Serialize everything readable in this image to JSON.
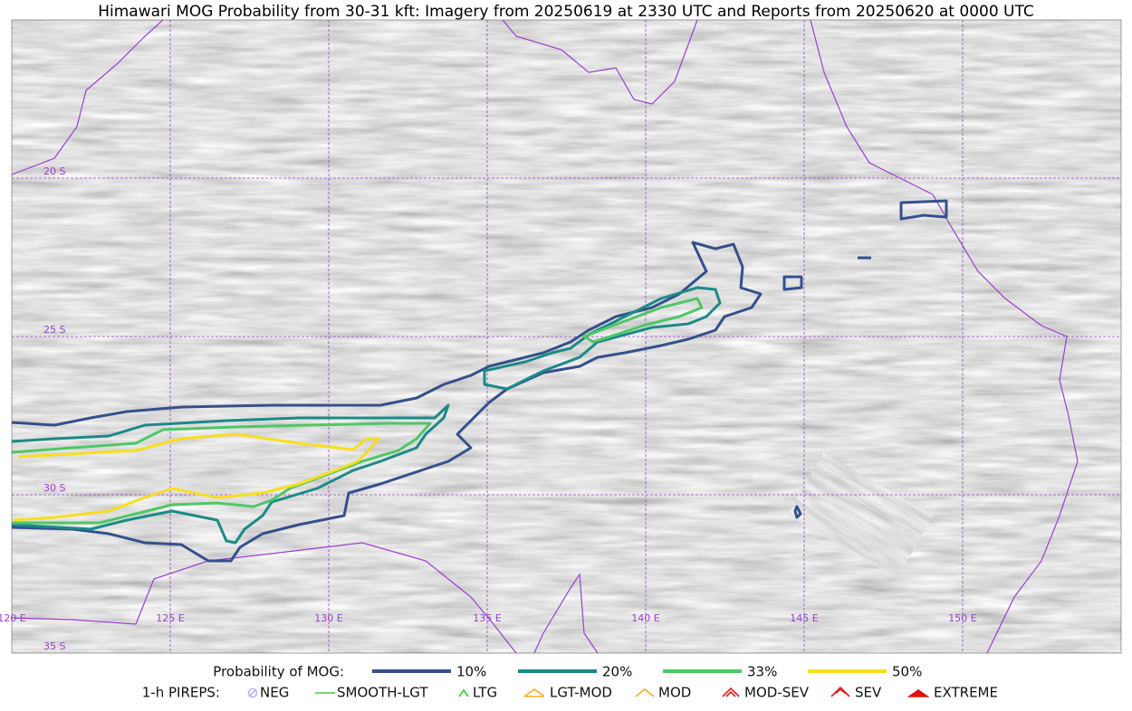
{
  "title": "Himawari MOG Probability from 30-31 kft: Imagery from 20250619 at 2330 UTC and Reports from 20250620 at 0000 UTC",
  "grid_labels": {
    "latitudes": [
      "20 S",
      "25 S",
      "30 S",
      "35 S"
    ],
    "longitudes": [
      "120 E",
      "125 E",
      "130 E",
      "135 E",
      "140 E",
      "145 E",
      "150 E"
    ]
  },
  "legend": {
    "probability": {
      "label": "Probability of MOG:",
      "items": [
        {
          "label": "10%",
          "color": "#34508c"
        },
        {
          "label": "20%",
          "color": "#1c8a87"
        },
        {
          "label": "33%",
          "color": "#4ec765"
        },
        {
          "label": "50%",
          "color": "#f7de1f"
        }
      ]
    },
    "pireps": {
      "label": "1-h PIREPS:",
      "items": [
        "NEG",
        "SMOOTH-LGT",
        "LTG",
        "LGT-MOD",
        "MOD",
        "MOD-SEV",
        "SEV",
        "EXTREME"
      ]
    }
  }
}
